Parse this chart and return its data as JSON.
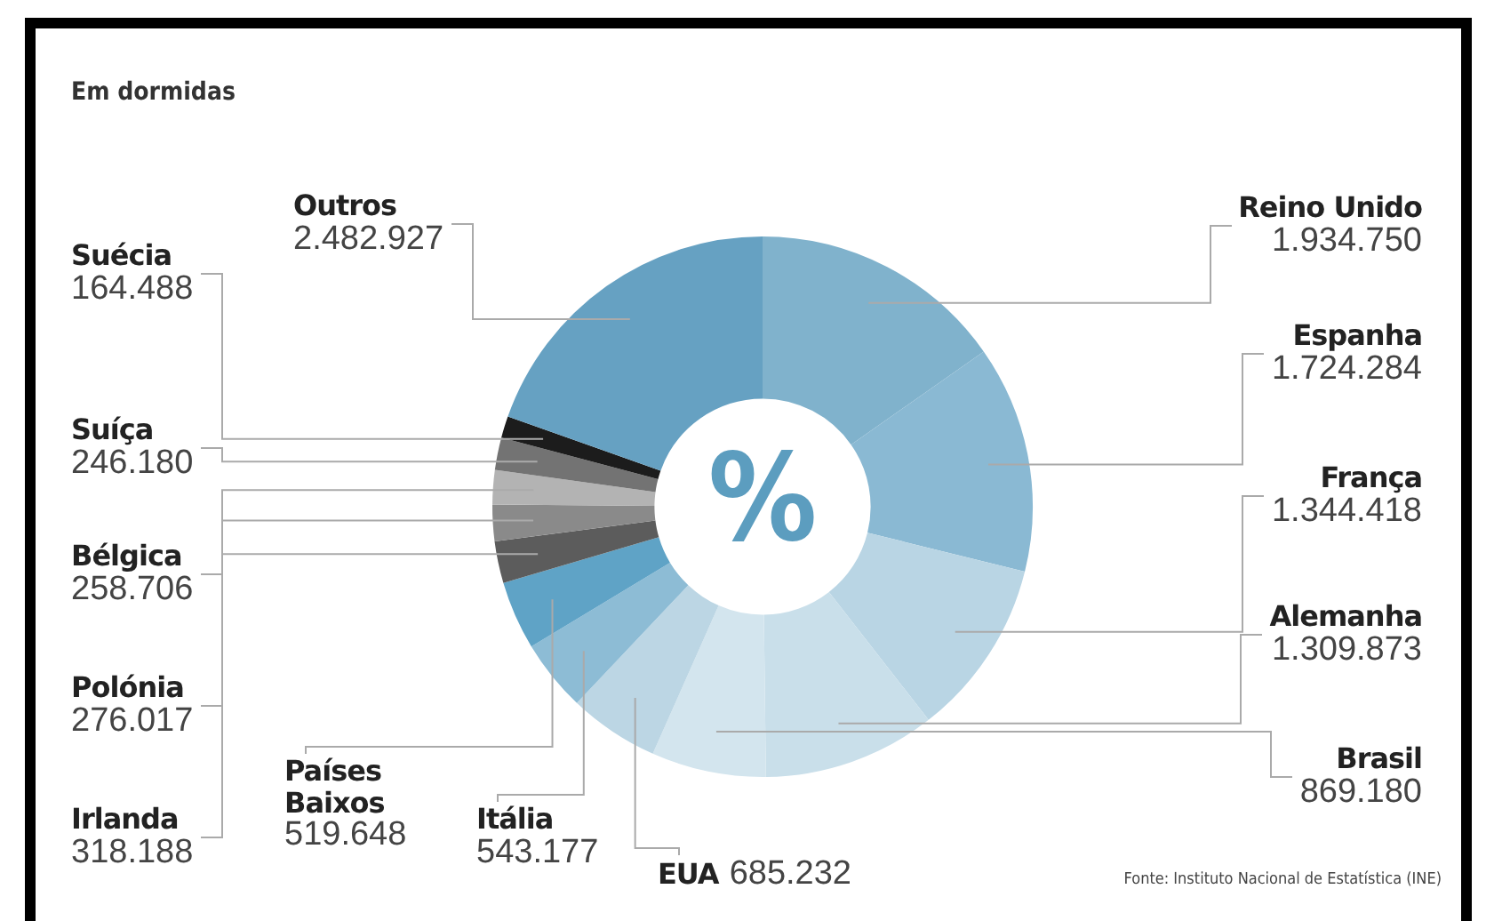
{
  "chart_data": {
    "type": "donut",
    "title": "Em dormidas",
    "categories": [
      "Reino Unido",
      "Espanha",
      "França",
      "Alemanha",
      "Brasil",
      "EUA",
      "Itália",
      "Países Baixos",
      "Irlanda",
      "Polónia",
      "Bélgica",
      "Suíça",
      "Suécia",
      "Outros"
    ],
    "values": [
      1934750,
      1724284,
      1344418,
      1309873,
      869180,
      685232,
      543177,
      519648,
      318188,
      276017,
      258706,
      246180,
      164488,
      2482927
    ],
    "value_labels": [
      "1.934.750",
      "1.724.284",
      "1.344.418",
      "1.309.873",
      "869.180",
      "685.232",
      "543.177",
      "519.648",
      "318.188",
      "276.017",
      "258.706",
      "246.180",
      "164.488",
      "2.482.927"
    ],
    "colors": [
      "#80b2cc",
      "#8ab9d3",
      "#b9d5e4",
      "#c9dfea",
      "#d3e5ee",
      "#bcd6e4",
      "#8dbcd5",
      "#5fa3c6",
      "#5c5c5c",
      "#8a8a8a",
      "#b3b3b3",
      "#737373",
      "#1c1c1c",
      "#66a1c2"
    ],
    "annotations": [
      "%",
      "Fonte: Instituto Nacional de Estatística (INE)"
    ]
  }
}
